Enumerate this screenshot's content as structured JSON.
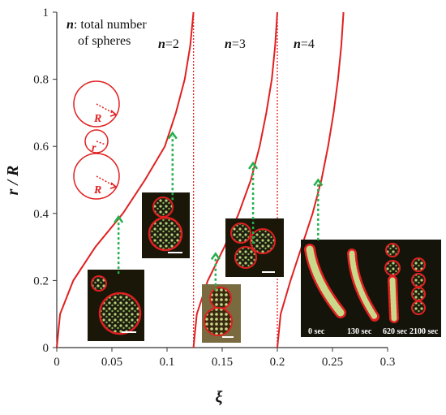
{
  "chart_data": {
    "type": "line",
    "xlabel": "ξ",
    "ylabel": "r / R",
    "xlim": [
      0,
      0.3
    ],
    "ylim": [
      0,
      1
    ],
    "x_ticks": [
      "0",
      "0.05",
      "0.1",
      "0.15",
      "0.2",
      "0.25",
      "0.3"
    ],
    "y_ticks": [
      "0",
      "0.2",
      "0.4",
      "0.6",
      "0.8",
      "1"
    ],
    "grid": false,
    "series": [
      {
        "name": "",
        "color": "#e02020",
        "points": [
          [
            0,
            0
          ],
          [
            0.003,
            0.1
          ],
          [
            0.015,
            0.2
          ],
          [
            0.035,
            0.3
          ],
          [
            0.06,
            0.4
          ],
          [
            0.08,
            0.5
          ],
          [
            0.098,
            0.6
          ],
          [
            0.108,
            0.7
          ],
          [
            0.116,
            0.8
          ],
          [
            0.121,
            0.9
          ],
          [
            0.124,
            1.0
          ]
        ]
      },
      {
        "name": "",
        "color": "#e02020",
        "points": [
          [
            0.124,
            0
          ],
          [
            0.127,
            0.1
          ],
          [
            0.137,
            0.2
          ],
          [
            0.152,
            0.3
          ],
          [
            0.165,
            0.4
          ],
          [
            0.176,
            0.5
          ],
          [
            0.184,
            0.6
          ],
          [
            0.19,
            0.7
          ],
          [
            0.195,
            0.8
          ],
          [
            0.198,
            0.9
          ],
          [
            0.2,
            1.0
          ]
        ]
      },
      {
        "name": "",
        "color": "#e02020",
        "points": [
          [
            0.2,
            0
          ],
          [
            0.203,
            0.1
          ],
          [
            0.212,
            0.2
          ],
          [
            0.222,
            0.3
          ],
          [
            0.232,
            0.4
          ],
          [
            0.24,
            0.5
          ],
          [
            0.246,
            0.6
          ],
          [
            0.251,
            0.7
          ],
          [
            0.255,
            0.8
          ],
          [
            0.258,
            0.9
          ],
          [
            0.26,
            1.0
          ]
        ]
      }
    ],
    "vertical_lines": [
      {
        "x": 0.124,
        "style": "dotted",
        "color": "#e02020"
      },
      {
        "x": 0.2,
        "style": "dotted",
        "color": "#e02020"
      }
    ],
    "markers": [
      {
        "x": 0.056,
        "y_from": 0.22,
        "y_to": 0.39
      },
      {
        "x": 0.105,
        "y_from": 0.44,
        "y_to": 0.64
      },
      {
        "x": 0.144,
        "y_from": 0.17,
        "y_to": 0.28
      },
      {
        "x": 0.178,
        "y_from": 0.31,
        "y_to": 0.55
      },
      {
        "x": 0.237,
        "y_from": 0.32,
        "y_to": 0.5
      }
    ]
  },
  "annotations": {
    "n_symbol": "n",
    "n_desc_line1": ": total number",
    "n_desc_line2": "of spheres",
    "n_label": "n",
    "n2": "=2",
    "n3": "=3",
    "n4": "=4"
  },
  "circle_labels": {
    "R_top": "R",
    "r_mid": "r",
    "R_bot": "R"
  },
  "time_labels": [
    "0 sec",
    "130 sec",
    "620 sec",
    "2100 sec"
  ],
  "colors": {
    "curve": "#e02020",
    "marker_arrow": "#22b14c",
    "axis": "#333333"
  }
}
